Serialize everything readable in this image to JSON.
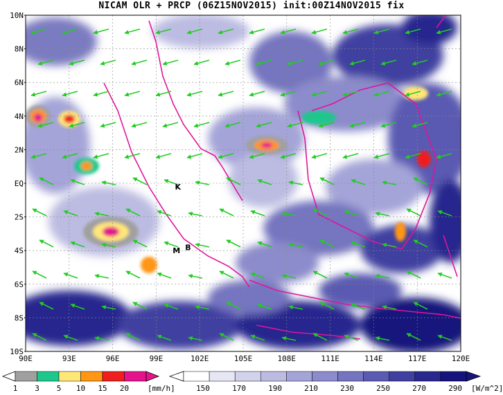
{
  "title": "NICAM OLR + PRCP (06Z15NOV2015) init:00Z14NOV2015 fix",
  "map": {
    "lon_range": [
      90,
      120
    ],
    "lat_range": [
      -10,
      10
    ],
    "lat_labels": [
      "10N",
      "8N",
      "6N",
      "4N",
      "2N",
      "EQ",
      "2S",
      "4S",
      "6S",
      "8S",
      "10S"
    ],
    "lat_values": [
      10,
      8,
      6,
      4,
      2,
      0,
      -2,
      -4,
      -6,
      -8,
      -10
    ],
    "lon_labels": [
      "90E",
      "93E",
      "96E",
      "99E",
      "102E",
      "105E",
      "108E",
      "111E",
      "114E",
      "117E",
      "120E"
    ],
    "lon_values": [
      90,
      93,
      96,
      99,
      102,
      105,
      108,
      111,
      114,
      117,
      120
    ],
    "gridlines": true,
    "markers": [
      {
        "label": "K",
        "lon": 100.5,
        "lat": -0.2
      },
      {
        "label": "M",
        "lon": 100.4,
        "lat": -4.0
      },
      {
        "label": "B",
        "lon": 101.2,
        "lat": -3.8
      }
    ],
    "colors": {
      "coastline": "#e0149a",
      "wind": "#22cc22",
      "olr_low": "#ffffff",
      "olr_high": "#1e1e8c"
    }
  },
  "precip_colorbar": {
    "labels": [
      "1",
      "3",
      "5",
      "10",
      "15",
      "20"
    ],
    "unit": "[mm/h]",
    "colors": [
      "#a0a0a0",
      "#1ec88c",
      "#ffe678",
      "#ff9614",
      "#f01e1e",
      "#e6148c"
    ]
  },
  "olr_colorbar": {
    "labels": [
      "150",
      "170",
      "190",
      "210",
      "230",
      "250",
      "270",
      "290"
    ],
    "unit": "[W/m^2]",
    "colors": [
      "#ffffff",
      "#e6e6f4",
      "#d2d2ec",
      "#bcbce2",
      "#a4a4d8",
      "#8c8ccc",
      "#7474c0",
      "#5a5ab2",
      "#4040a0",
      "#28288e",
      "#14147c"
    ]
  }
}
